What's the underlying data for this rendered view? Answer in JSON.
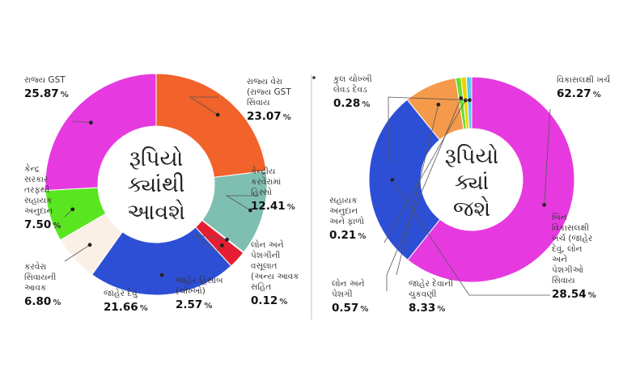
{
  "chart_data": [
    {
      "type": "pie",
      "center_text": [
        "રૂપિયો",
        "ક્યાંથી",
        "આવશે"
      ],
      "slices": [
        {
          "label": [
            "રાજ્ય વેરા",
            "(રાજ્ય GST",
            "સિવાય"
          ],
          "value": 23.07,
          "value_text": "23.07",
          "color": "#f2622b"
        },
        {
          "label": [
            "કેન્દ્રીય",
            "કરવેરામાં",
            "હિસ્સો"
          ],
          "value": 12.41,
          "value_text": "12.41",
          "color": "#7fbfb2"
        },
        {
          "label": [
            "લોન અને",
            "પેશગીની",
            "વસૂલાત",
            "(અન્ય આવક",
            "સહિત"
          ],
          "value": 0.12,
          "value_text": "0.12",
          "color": "#f0d200"
        },
        {
          "label": [
            "જાહેર હિસાબ",
            "(ચોખ્ખો)"
          ],
          "value": 2.57,
          "value_text": "2.57",
          "color": "#e61e32"
        },
        {
          "label": [
            "જાહેર દેવું"
          ],
          "value": 21.66,
          "value_text": "21.66",
          "color": "#2d4fd6"
        },
        {
          "label": [
            "કરવેરા",
            "સિવાયની",
            "આવક"
          ],
          "value": 6.8,
          "value_text": "6.80",
          "color": "#faf0e6"
        },
        {
          "label": [
            "કેન્દ્ર",
            "સરકાર",
            "તરફથી",
            "સહાયક",
            "અનુદાન"
          ],
          "value": 7.5,
          "value_text": "7.50",
          "color": "#59e620"
        },
        {
          "label": [
            "રાજ્ય GST"
          ],
          "value": 25.87,
          "value_text": "25.87",
          "color": "#e63ae0"
        }
      ],
      "unit": "%"
    },
    {
      "type": "pie",
      "center_text": [
        "રૂપિયો",
        "ક્યાં",
        "જશે"
      ],
      "slices": [
        {
          "label": [
            "વિકાસલક્ષી ખર્ચ"
          ],
          "value": 62.27,
          "value_text": "62.27",
          "color": "#e63ae0"
        },
        {
          "label": [
            "બિન",
            "વિકાસલક્ષી",
            "ખર્ચ (જાહેર",
            "દેવું, લોન",
            "અને",
            "પેશગીઓ",
            "સિવાય"
          ],
          "value": 28.54,
          "value_text": "28.54",
          "color": "#2d4fd6"
        },
        {
          "label": [
            "જાહેર દેવાની",
            "ચુકવણી"
          ],
          "value": 8.33,
          "value_text": "8.33",
          "color": "#f59a4a"
        },
        {
          "label": [
            "લોન અને",
            "પેશગી"
          ],
          "value": 0.57,
          "value_text": "0.57",
          "color": "#62e02a"
        },
        {
          "label": [
            "સહાયક",
            "અનુદાન",
            "અને ફાળો"
          ],
          "value": 0.21,
          "value_text": "0.21",
          "color": "#f0d200"
        },
        {
          "label": [
            "કુલ ચોખ્ખી",
            "લેવડ દેવડ"
          ],
          "value": 0.28,
          "value_text": "0.28",
          "color": "#5cc8f0"
        }
      ],
      "unit": "%"
    }
  ]
}
